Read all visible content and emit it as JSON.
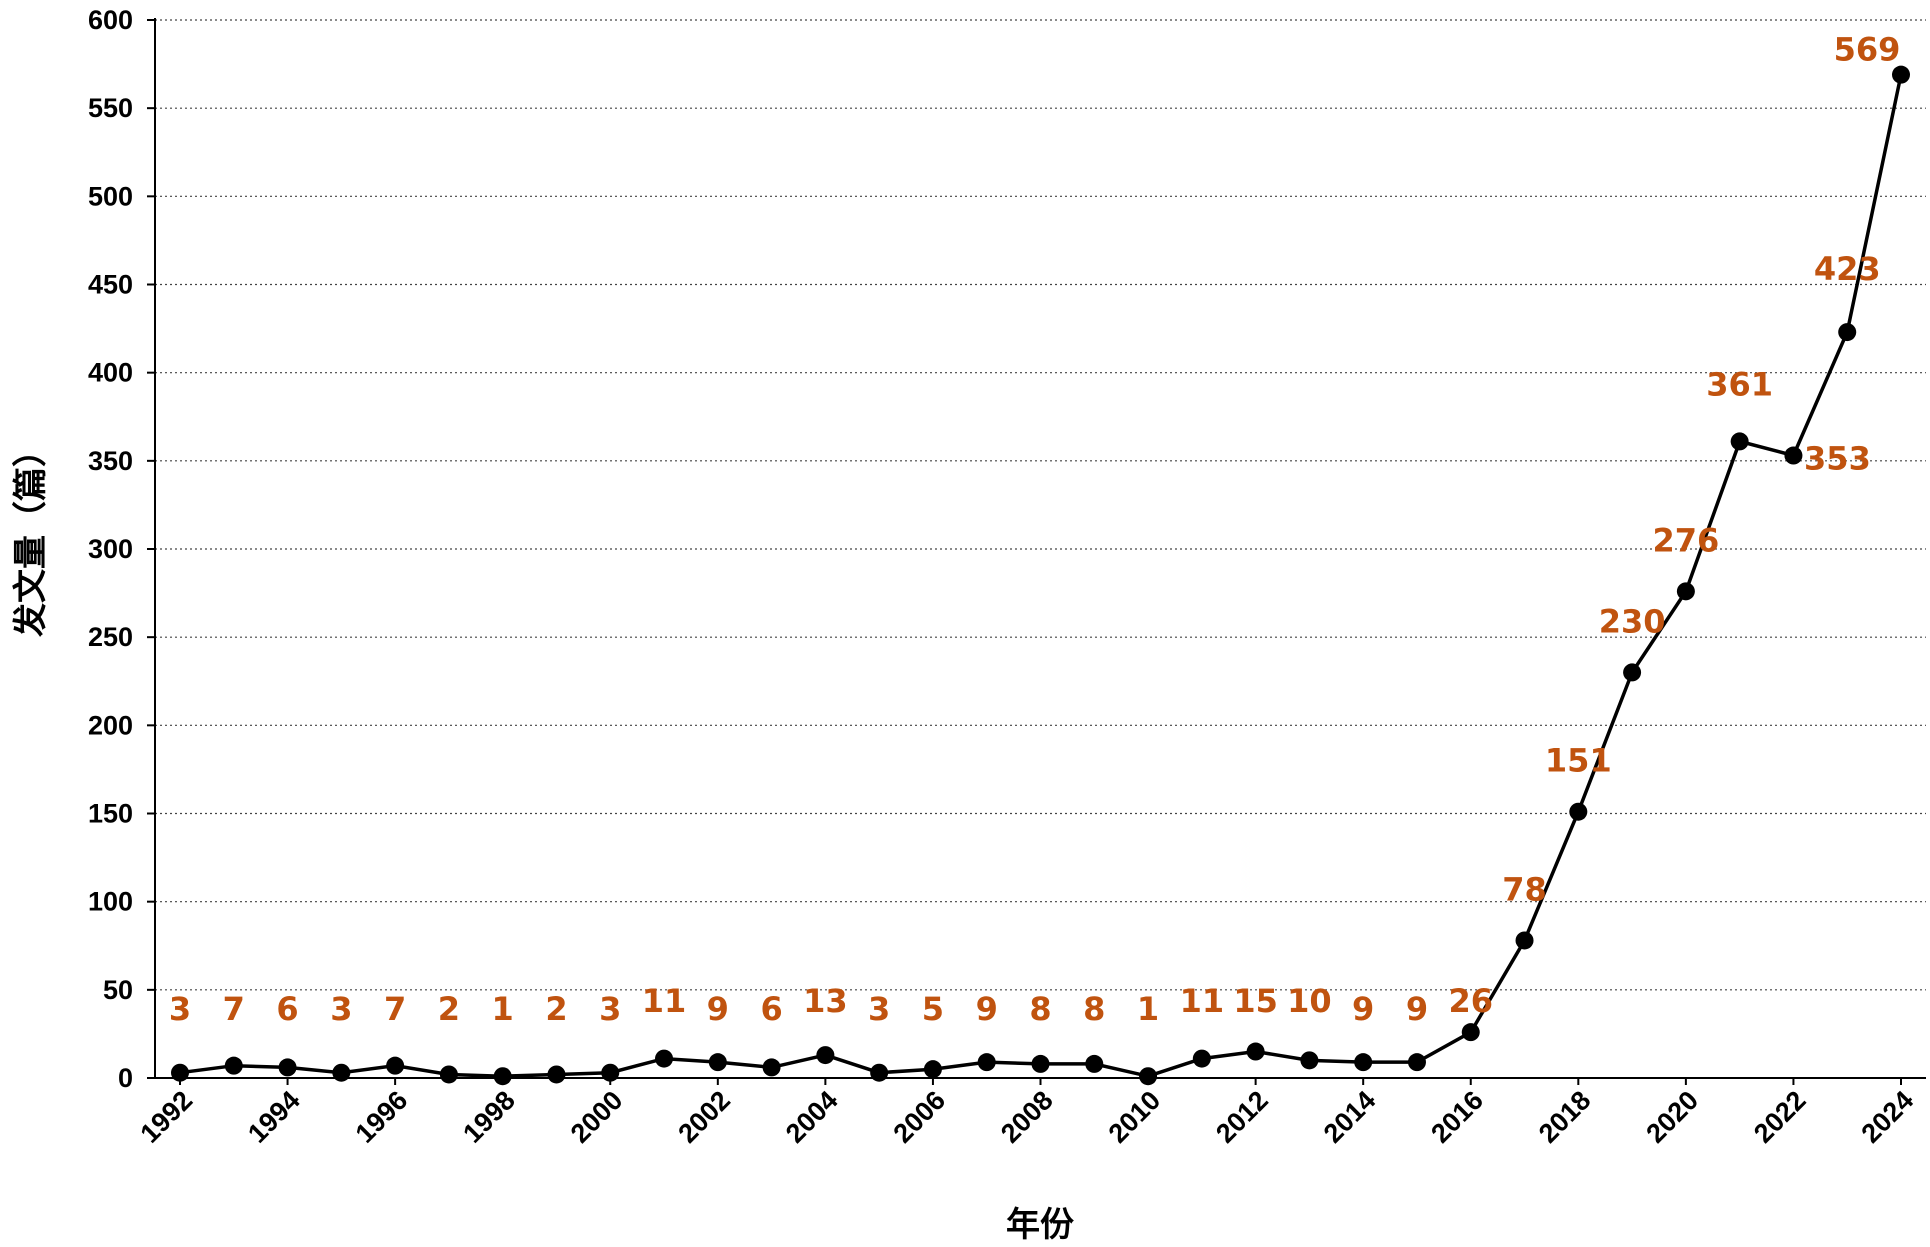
{
  "chart_data": {
    "type": "line",
    "xlabel": "年份",
    "ylabel": "发文量（篇）",
    "ylim": [
      0,
      600
    ],
    "yticks": [
      0,
      50,
      100,
      150,
      200,
      250,
      300,
      350,
      400,
      450,
      500,
      550,
      600
    ],
    "x": [
      1992,
      1993,
      1994,
      1995,
      1996,
      1997,
      1998,
      1999,
      2000,
      2001,
      2002,
      2003,
      2004,
      2005,
      2006,
      2007,
      2008,
      2009,
      2010,
      2011,
      2012,
      2013,
      2014,
      2015,
      2016,
      2017,
      2018,
      2019,
      2020,
      2021,
      2022,
      2023,
      2024
    ],
    "xtick_labels": [
      "1992",
      "1994",
      "1996",
      "1998",
      "2000",
      "2002",
      "2004",
      "2006",
      "2008",
      "2010",
      "2012",
      "2014",
      "2016",
      "2018",
      "2020",
      "2022",
      "2024"
    ],
    "series": [
      {
        "values": [
          3,
          7,
          6,
          3,
          7,
          2,
          1,
          2,
          3,
          11,
          9,
          6,
          13,
          3,
          5,
          9,
          8,
          8,
          1,
          11,
          15,
          10,
          9,
          9,
          26,
          78,
          151,
          230,
          276,
          361,
          353,
          423,
          569
        ],
        "color": "#000000",
        "label_color": "#c0530f"
      }
    ],
    "grid": true
  }
}
